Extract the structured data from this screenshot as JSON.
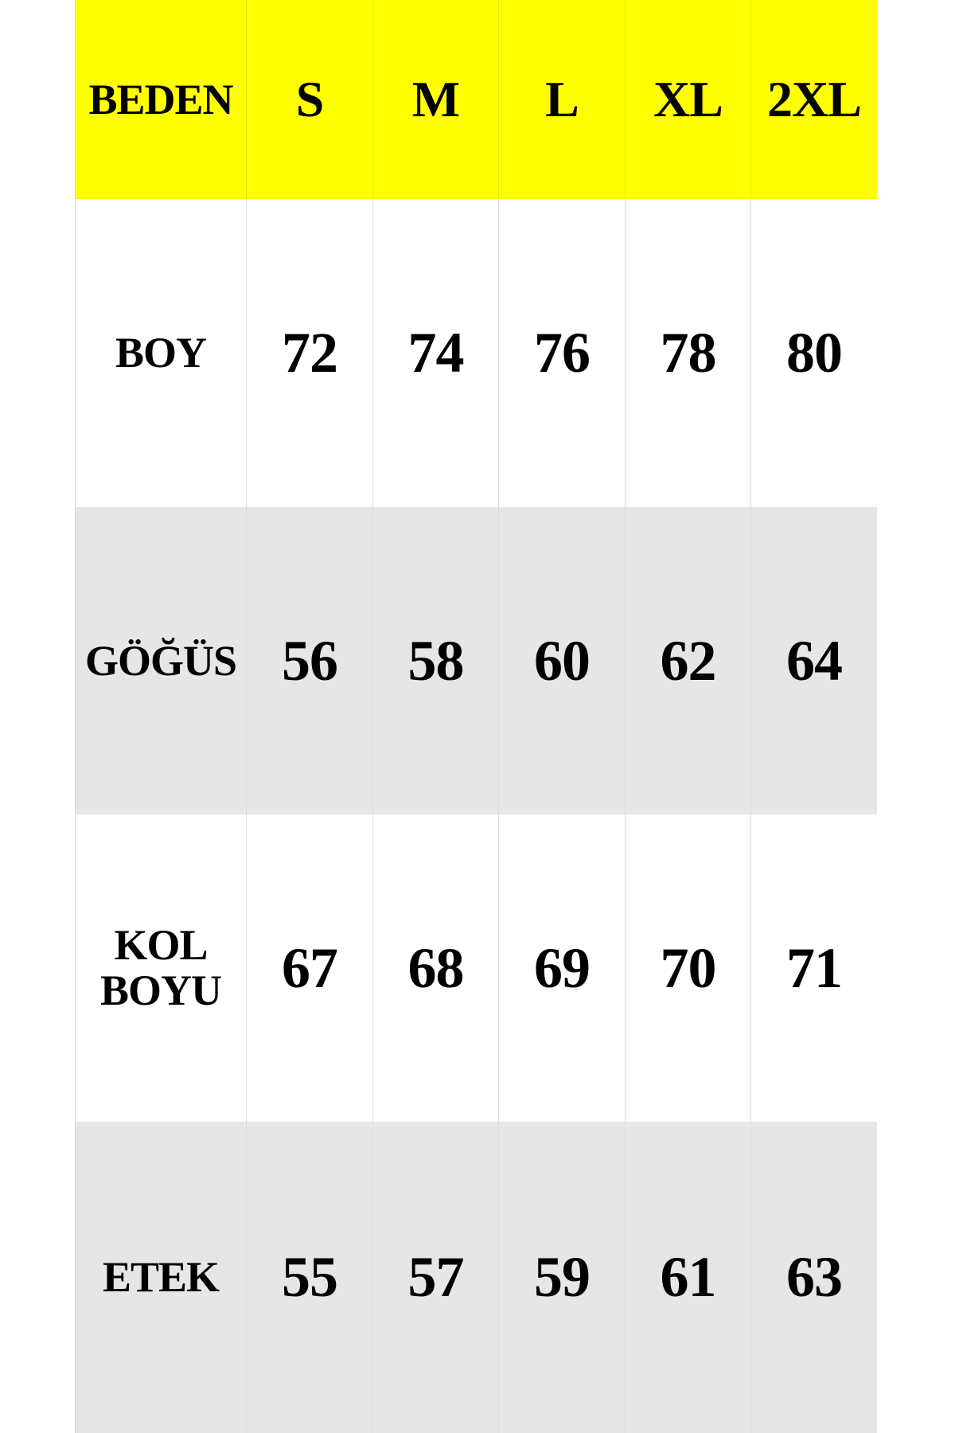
{
  "table": {
    "header": [
      "BEDEN",
      "S",
      "M",
      "L",
      "XL",
      "2XL"
    ],
    "rows": [
      [
        "BOY",
        72,
        74,
        76,
        78,
        80
      ],
      [
        "GÖĞÜS",
        56,
        58,
        60,
        62,
        64
      ],
      [
        "KOL BOYU",
        67,
        68,
        69,
        70,
        71
      ],
      [
        "ETEK",
        55,
        57,
        59,
        61,
        63
      ]
    ]
  }
}
